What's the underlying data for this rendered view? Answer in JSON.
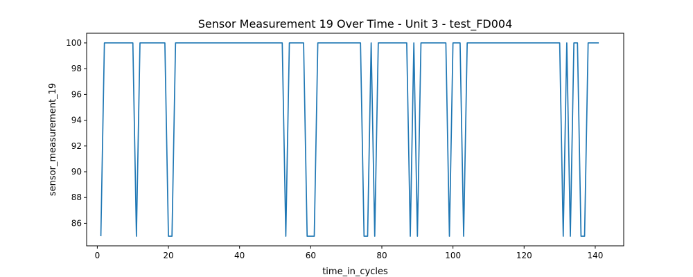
{
  "chart_data": {
    "type": "line",
    "title": "Sensor Measurement 19 Over Time - Unit 3 - test_FD004",
    "xlabel": "time_in_cycles",
    "ylabel": "sensor_measurement_19",
    "xlim": [
      -3.0,
      148.0
    ],
    "ylim": [
      84.25,
      100.75
    ],
    "x_ticks": [
      0,
      20,
      40,
      60,
      80,
      100,
      120,
      140
    ],
    "y_ticks": [
      86,
      88,
      90,
      92,
      94,
      96,
      98,
      100
    ],
    "grid": false,
    "legend": "none",
    "series": [
      {
        "color": "#1f77b4",
        "x": [
          1,
          2,
          3,
          4,
          5,
          6,
          7,
          8,
          9,
          10,
          11,
          12,
          13,
          14,
          15,
          16,
          17,
          18,
          19,
          20,
          21,
          22,
          23,
          24,
          25,
          26,
          27,
          28,
          29,
          30,
          31,
          32,
          33,
          34,
          35,
          36,
          37,
          38,
          39,
          40,
          41,
          42,
          43,
          44,
          45,
          46,
          47,
          48,
          49,
          50,
          51,
          52,
          53,
          54,
          55,
          56,
          57,
          58,
          59,
          60,
          61,
          62,
          63,
          64,
          65,
          66,
          67,
          68,
          69,
          70,
          71,
          72,
          73,
          74,
          75,
          76,
          77,
          78,
          79,
          80,
          81,
          82,
          83,
          84,
          85,
          86,
          87,
          88,
          89,
          90,
          91,
          92,
          93,
          94,
          95,
          96,
          97,
          98,
          99,
          100,
          101,
          102,
          103,
          104,
          105,
          106,
          107,
          108,
          109,
          110,
          111,
          112,
          113,
          114,
          115,
          116,
          117,
          118,
          119,
          120,
          121,
          122,
          123,
          124,
          125,
          126,
          127,
          128,
          129,
          130,
          131,
          132,
          133,
          134,
          135,
          136,
          137,
          138,
          139,
          140,
          141
        ],
        "y": [
          85,
          100,
          100,
          100,
          100,
          100,
          100,
          100,
          100,
          100,
          85,
          100,
          100,
          100,
          100,
          100,
          100,
          100,
          100,
          85,
          85,
          100,
          100,
          100,
          100,
          100,
          100,
          100,
          100,
          100,
          100,
          100,
          100,
          100,
          100,
          100,
          100,
          100,
          100,
          100,
          100,
          100,
          100,
          100,
          100,
          100,
          100,
          100,
          100,
          100,
          100,
          100,
          85,
          100,
          100,
          100,
          100,
          100,
          85,
          85,
          85,
          100,
          100,
          100,
          100,
          100,
          100,
          100,
          100,
          100,
          100,
          100,
          100,
          100,
          85,
          85,
          100,
          85,
          100,
          100,
          100,
          100,
          100,
          100,
          100,
          100,
          100,
          85,
          100,
          85,
          100,
          100,
          100,
          100,
          100,
          100,
          100,
          100,
          85,
          100,
          100,
          100,
          85,
          100,
          100,
          100,
          100,
          100,
          100,
          100,
          100,
          100,
          100,
          100,
          100,
          100,
          100,
          100,
          100,
          100,
          100,
          100,
          100,
          100,
          100,
          100,
          100,
          100,
          100,
          100,
          85,
          100,
          85,
          100,
          100,
          85,
          85,
          100,
          100,
          100,
          100
        ]
      }
    ]
  }
}
